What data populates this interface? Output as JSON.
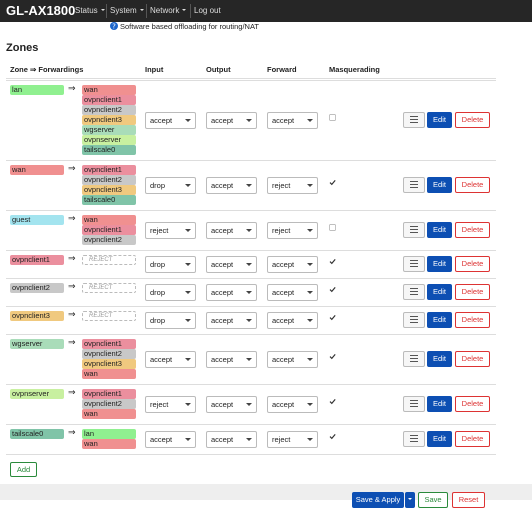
{
  "header": {
    "brand": "GL-AX1800",
    "menu": [
      "Status",
      "System",
      "Network",
      "Log out"
    ]
  },
  "note": "Software based offloading for routing/NAT",
  "section_title": "Zones",
  "zone_colors": {
    "lan": "#90f090",
    "wan": "#f09090",
    "guest": "#a3e4ef",
    "ovpnclient1": "#eb8f9e",
    "ovpnclient2": "#c8c8c8",
    "ovpnclient3": "#f0c97f",
    "wgserver": "#a9dcb9",
    "ovpnserver": "#c8f0a0",
    "tailscale0": "#80c4a8"
  },
  "table": {
    "columns": [
      "Zone ⇒ Forwardings",
      "Input",
      "Output",
      "Forward",
      "Masquerading"
    ],
    "arrow": "⇒",
    "reject_label": "REJECT",
    "rows": [
      {
        "zone": "lan",
        "forwardings": [
          "wan",
          "ovpnclient1",
          "ovpnclient2",
          "ovpnclient3",
          "wgserver",
          "ovpnserver",
          "tailscale0"
        ],
        "input": "accept",
        "output": "accept",
        "forward": "accept",
        "masquerading": false
      },
      {
        "zone": "wan",
        "forwardings": [
          "ovpnclient1",
          "ovpnclient2",
          "ovpnclient3",
          "tailscale0"
        ],
        "input": "drop",
        "output": "accept",
        "forward": "reject",
        "masquerading": true
      },
      {
        "zone": "guest",
        "forwardings": [
          "wan",
          "ovpnclient1",
          "ovpnclient2"
        ],
        "input": "reject",
        "output": "accept",
        "forward": "reject",
        "masquerading": false
      },
      {
        "zone": "ovpnclient1",
        "forwardings": [],
        "input": "drop",
        "output": "accept",
        "forward": "accept",
        "masquerading": true
      },
      {
        "zone": "ovpnclient2",
        "forwardings": [],
        "input": "drop",
        "output": "accept",
        "forward": "accept",
        "masquerading": true
      },
      {
        "zone": "ovpnclient3",
        "forwardings": [],
        "input": "drop",
        "output": "accept",
        "forward": "accept",
        "masquerading": true
      },
      {
        "zone": "wgserver",
        "forwardings": [
          "ovpnclient1",
          "ovpnclient2",
          "ovpnclient3",
          "wan"
        ],
        "input": "accept",
        "output": "accept",
        "forward": "accept",
        "masquerading": true
      },
      {
        "zone": "ovpnserver",
        "forwardings": [
          "ovpnclient1",
          "ovpnclient2",
          "wan"
        ],
        "input": "reject",
        "output": "accept",
        "forward": "accept",
        "masquerading": true
      },
      {
        "zone": "tailscale0",
        "forwardings": [
          "lan",
          "wan"
        ],
        "input": "accept",
        "output": "accept",
        "forward": "reject",
        "masquerading": true
      }
    ]
  },
  "buttons": {
    "edit": "Edit",
    "delete": "Delete",
    "add": "Add"
  },
  "footer": {
    "save_apply": "Save & Apply",
    "save": "Save",
    "reset": "Reset"
  }
}
